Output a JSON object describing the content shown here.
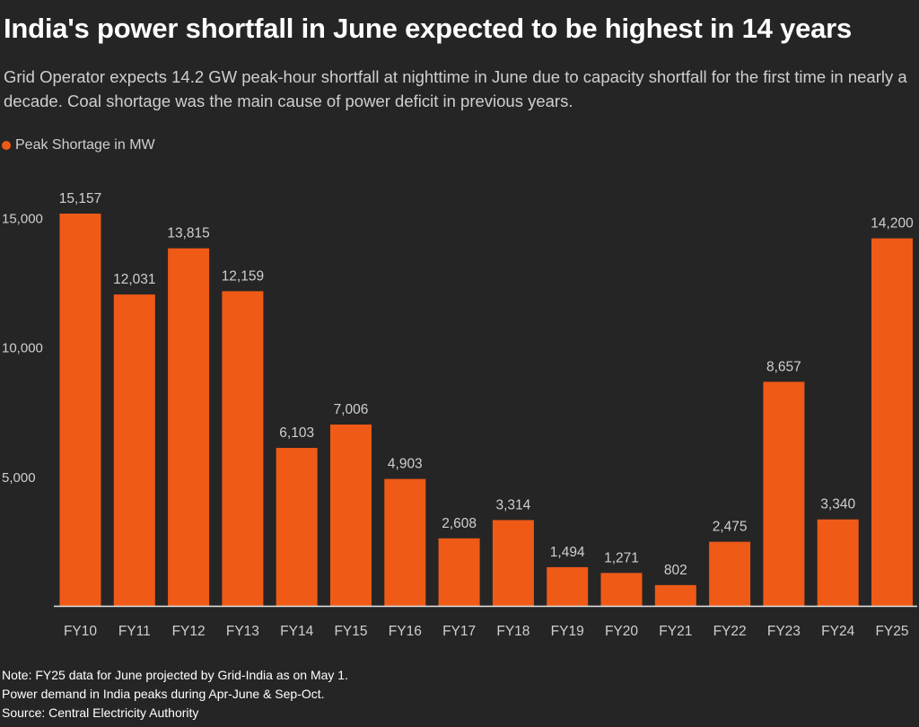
{
  "colors": {
    "background": "#252525",
    "bar": "#ef5a17",
    "text": "#ffffff",
    "muted": "#cfcfcf",
    "axis": "#e6e6e6"
  },
  "legend": {
    "label": "Peak Shortage in MW",
    "icon": "circle-icon"
  },
  "notes": {
    "note_line1": "Note: FY25 data for June projected by Grid-India as on May 1.",
    "note_line2": "Power demand in India peaks during Apr-June & Sep-Oct.",
    "source": "Source: Central Electricity Authority"
  },
  "chart_data": {
    "type": "bar",
    "title": "India's power shortfall in June expected to be highest in 14 years",
    "subtitle": "Grid Operator expects 14.2 GW peak-hour shortfall at nighttime in June due to capacity shortfall for the first time in nearly a decade. Coal shortage was the main cause of power deficit in previous years.",
    "categories": [
      "FY10",
      "FY11",
      "FY12",
      "FY13",
      "FY14",
      "FY15",
      "FY16",
      "FY17",
      "FY18",
      "FY19",
      "FY20",
      "FY21",
      "FY22",
      "FY23",
      "FY24",
      "FY25"
    ],
    "series": [
      {
        "name": "Peak Shortage in MW",
        "values": [
          15157,
          12031,
          13815,
          12159,
          6103,
          7006,
          4903,
          2608,
          3314,
          1494,
          1271,
          802,
          2475,
          8657,
          3340,
          14200
        ]
      }
    ],
    "data_labels": [
      "15,157",
      "12,031",
      "13,815",
      "12,159",
      "6,103",
      "7,006",
      "4,903",
      "2,608",
      "3,314",
      "1,494",
      "1,271",
      "802",
      "2,475",
      "8,657",
      "3,340",
      "14,200"
    ],
    "yticks": [
      5000,
      10000,
      15000
    ],
    "ytick_labels": [
      "5,000",
      "10,000",
      "15,000"
    ],
    "ylim": [
      0,
      15157
    ],
    "xlabel": "",
    "ylabel": "",
    "grid": false,
    "legend_position": "top-left"
  }
}
